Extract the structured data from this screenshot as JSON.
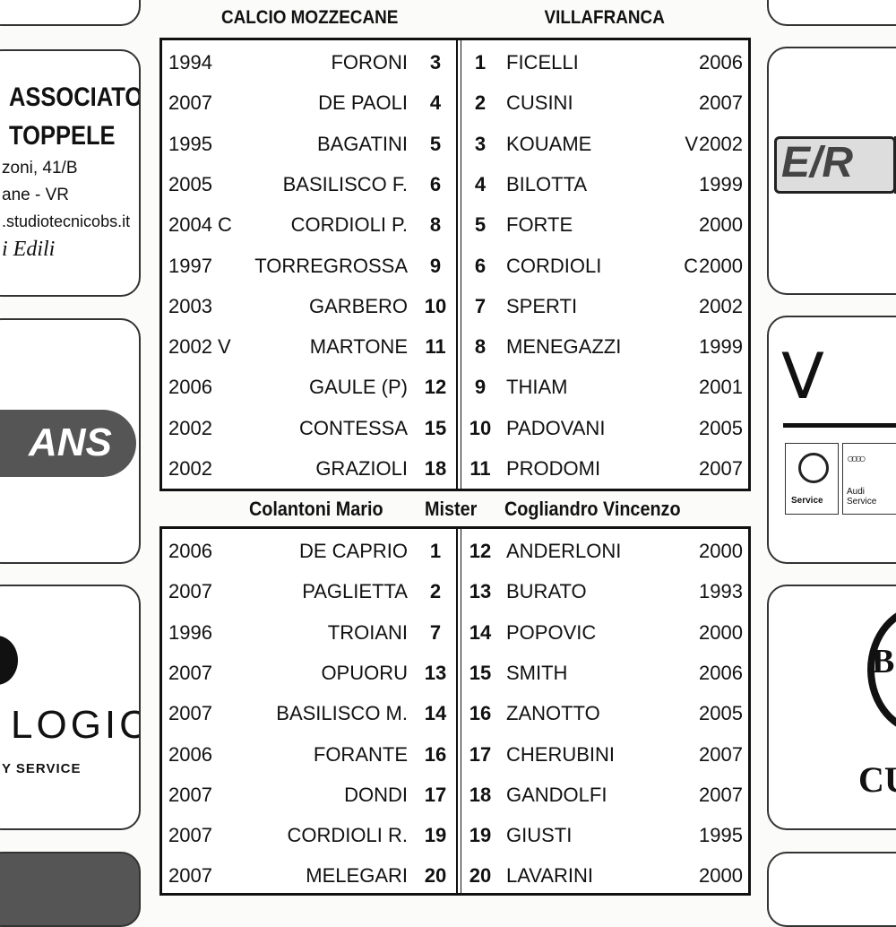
{
  "home_team": "CALCIO MOZZECANE",
  "away_team": "VILLAFRANCA",
  "mister_label": "Mister",
  "home_coach": "Colantoni Mario",
  "away_coach": "Cogliandro Vincenzo",
  "starters": [
    {
      "h_year": "1994",
      "h_mark": "",
      "h_name": "FORONI",
      "h_no": "3",
      "a_no": "1",
      "a_name": "FICELLI",
      "a_mark": "",
      "a_year": "2006"
    },
    {
      "h_year": "2007",
      "h_mark": "",
      "h_name": "DE PAOLI",
      "h_no": "4",
      "a_no": "2",
      "a_name": "CUSINI",
      "a_mark": "",
      "a_year": "2007"
    },
    {
      "h_year": "1995",
      "h_mark": "",
      "h_name": "BAGATINI",
      "h_no": "5",
      "a_no": "3",
      "a_name": "KOUAME",
      "a_mark": "V",
      "a_year": "2002"
    },
    {
      "h_year": "2005",
      "h_mark": "",
      "h_name": "BASILISCO F.",
      "h_no": "6",
      "a_no": "4",
      "a_name": "BILOTTA",
      "a_mark": "",
      "a_year": "1999"
    },
    {
      "h_year": "2004",
      "h_mark": "C",
      "h_name": "CORDIOLI P.",
      "h_no": "8",
      "a_no": "5",
      "a_name": "FORTE",
      "a_mark": "",
      "a_year": "2000"
    },
    {
      "h_year": "1997",
      "h_mark": "",
      "h_name": "TORREGROSSA",
      "h_no": "9",
      "a_no": "6",
      "a_name": "CORDIOLI",
      "a_mark": "C",
      "a_year": "2000"
    },
    {
      "h_year": "2003",
      "h_mark": "",
      "h_name": "GARBERO",
      "h_no": "10",
      "a_no": "7",
      "a_name": "SPERTI",
      "a_mark": "",
      "a_year": "2002"
    },
    {
      "h_year": "2002",
      "h_mark": "V",
      "h_name": "MARTONE",
      "h_no": "11",
      "a_no": "8",
      "a_name": "MENEGAZZI",
      "a_mark": "",
      "a_year": "1999"
    },
    {
      "h_year": "2006",
      "h_mark": "",
      "h_name": "GAULE (P)",
      "h_no": "12",
      "a_no": "9",
      "a_name": "THIAM",
      "a_mark": "",
      "a_year": "2001"
    },
    {
      "h_year": "2002",
      "h_mark": "",
      "h_name": "CONTESSA",
      "h_no": "15",
      "a_no": "10",
      "a_name": "PADOVANI",
      "a_mark": "",
      "a_year": "2005"
    },
    {
      "h_year": "2002",
      "h_mark": "",
      "h_name": "GRAZIOLI",
      "h_no": "18",
      "a_no": "11",
      "a_name": "PRODOMI",
      "a_mark": "",
      "a_year": "2007"
    }
  ],
  "bench": [
    {
      "h_year": "2006",
      "h_mark": "",
      "h_name": "DE CAPRIO",
      "h_no": "1",
      "a_no": "12",
      "a_name": "ANDERLONI",
      "a_mark": "",
      "a_year": "2000"
    },
    {
      "h_year": "2007",
      "h_mark": "",
      "h_name": "PAGLIETTA",
      "h_no": "2",
      "a_no": "13",
      "a_name": "BURATO",
      "a_mark": "",
      "a_year": "1993"
    },
    {
      "h_year": "1996",
      "h_mark": "",
      "h_name": "TROIANI",
      "h_no": "7",
      "a_no": "14",
      "a_name": "POPOVIC",
      "a_mark": "",
      "a_year": "2000"
    },
    {
      "h_year": "2007",
      "h_mark": "",
      "h_name": "OPUORU",
      "h_no": "13",
      "a_no": "15",
      "a_name": "SMITH",
      "a_mark": "",
      "a_year": "2006"
    },
    {
      "h_year": "2007",
      "h_mark": "",
      "h_name": "BASILISCO M.",
      "h_no": "14",
      "a_no": "16",
      "a_name": "ZANOTTO",
      "a_mark": "",
      "a_year": "2005"
    },
    {
      "h_year": "2006",
      "h_mark": "",
      "h_name": "FORANTE",
      "h_no": "16",
      "a_no": "17",
      "a_name": "CHERUBINI",
      "a_mark": "",
      "a_year": "2007"
    },
    {
      "h_year": "2007",
      "h_mark": "",
      "h_name": "DONDI",
      "h_no": "17",
      "a_no": "18",
      "a_name": "GANDOLFI",
      "a_mark": "",
      "a_year": "2007"
    },
    {
      "h_year": "2007",
      "h_mark": "",
      "h_name": "CORDIOLI R.",
      "h_no": "19",
      "a_no": "19",
      "a_name": "GIUSTI",
      "a_mark": "",
      "a_year": "1995"
    },
    {
      "h_year": "2007",
      "h_mark": "",
      "h_name": "MELEGARI",
      "h_no": "20",
      "a_no": "20",
      "a_name": "LAVARINI",
      "a_mark": "",
      "a_year": "2000"
    }
  ],
  "ads": {
    "studio_line1": "ASSOCIATO",
    "studio_line2": "TOPPELE",
    "studio_addr1": "zoni, 41/B",
    "studio_addr2": "ane - VR",
    "studio_web": ".studiotecnicobs.it",
    "studio_tag": "i Edili",
    "ans_logo": "ANS",
    "logic_logo": "LOGIC",
    "logic_tag": "Y SERVICE",
    "er_logo": "E/R",
    "vw_logo": "V",
    "vw_service": "Service",
    "audi_service": "Audi Service",
    "bar_logo": "CU",
    "b_logo": "B"
  }
}
